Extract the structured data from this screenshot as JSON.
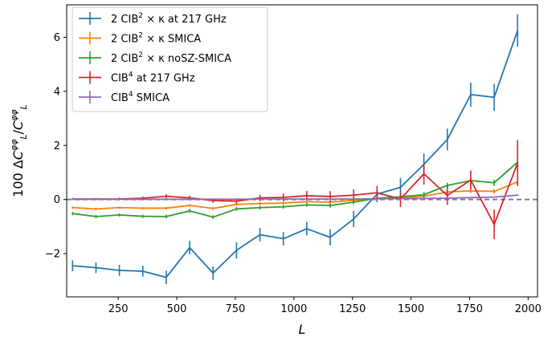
{
  "chart_data": {
    "type": "line",
    "xlabel": "L",
    "ylabel_prefix": "100",
    "ylabel_formula": "ΔC_L^φφ / C_L^φφ",
    "xlim": [
      30,
      2040
    ],
    "ylim": [
      -3.6,
      7.2
    ],
    "xticks": [
      250,
      500,
      750,
      1000,
      1250,
      1500,
      1750,
      2000
    ],
    "xtick_labels": [
      "250",
      "500",
      "750",
      "1000",
      "1250",
      "1500",
      "1750",
      "2000"
    ],
    "yticks": [
      -2,
      0,
      2,
      4,
      6
    ],
    "ytick_labels": [
      "−2",
      "0",
      "2",
      "4",
      "6"
    ],
    "reference_line": {
      "y": 0,
      "color": "#808080",
      "style": "dashed"
    },
    "legend_position": "upper left",
    "x": [
      55,
      155,
      255,
      355,
      455,
      555,
      655,
      755,
      855,
      955,
      1055,
      1155,
      1255,
      1355,
      1455,
      1555,
      1655,
      1755,
      1855,
      1955
    ],
    "series": [
      {
        "name_main": "2 CIB",
        "name_sup": "2",
        "name_tail": " × κ at 217 GHz",
        "color": "#1f77b4",
        "values": [
          -2.45,
          -2.52,
          -2.62,
          -2.65,
          -2.88,
          -1.78,
          -2.72,
          -1.88,
          -1.3,
          -1.45,
          -1.08,
          -1.4,
          -0.72,
          0.2,
          0.45,
          1.3,
          2.22,
          3.88,
          3.78,
          6.25
        ],
        "errors": [
          0.2,
          0.2,
          0.2,
          0.2,
          0.25,
          0.25,
          0.25,
          0.3,
          0.25,
          0.25,
          0.25,
          0.3,
          0.3,
          0.3,
          0.35,
          0.4,
          0.4,
          0.45,
          0.5,
          0.6
        ]
      },
      {
        "name_main": "2 CIB",
        "name_sup": "2",
        "name_tail": " × κ SMICA",
        "color": "#ff7f0e",
        "values": [
          -0.3,
          -0.35,
          -0.3,
          -0.32,
          -0.32,
          -0.22,
          -0.33,
          -0.18,
          -0.15,
          -0.13,
          -0.08,
          -0.1,
          -0.03,
          0.02,
          0.05,
          0.12,
          0.28,
          0.32,
          0.3,
          0.65
        ],
        "errors": [
          0.04,
          0.04,
          0.04,
          0.04,
          0.05,
          0.05,
          0.05,
          0.05,
          0.05,
          0.05,
          0.05,
          0.05,
          0.06,
          0.06,
          0.06,
          0.07,
          0.07,
          0.08,
          0.08,
          0.1
        ]
      },
      {
        "name_main": "2 CIB",
        "name_sup": "2",
        "name_tail": " × κ noSZ-SMICA",
        "color": "#2ca02c",
        "values": [
          -0.52,
          -0.63,
          -0.57,
          -0.62,
          -0.63,
          -0.42,
          -0.65,
          -0.35,
          -0.3,
          -0.27,
          -0.2,
          -0.22,
          -0.1,
          0.05,
          0.1,
          0.18,
          0.52,
          0.7,
          0.62,
          1.38
        ],
        "errors": [
          0.06,
          0.06,
          0.06,
          0.06,
          0.07,
          0.07,
          0.07,
          0.07,
          0.07,
          0.07,
          0.07,
          0.08,
          0.08,
          0.08,
          0.09,
          0.1,
          0.1,
          0.12,
          0.12,
          0.15
        ]
      },
      {
        "name_main": "CIB",
        "name_sup": "4",
        "name_tail": " at 217 GHz",
        "color": "#d62728",
        "values": [
          0.02,
          0.02,
          0.02,
          0.05,
          0.12,
          0.06,
          -0.04,
          -0.06,
          0.06,
          0.08,
          0.14,
          0.11,
          0.16,
          0.25,
          0.02,
          0.95,
          0.15,
          0.72,
          -0.92,
          1.35
        ],
        "errors": [
          0.04,
          0.04,
          0.05,
          0.06,
          0.08,
          0.08,
          0.08,
          0.1,
          0.12,
          0.15,
          0.18,
          0.2,
          0.22,
          0.25,
          0.3,
          0.4,
          0.35,
          0.35,
          0.55,
          0.85
        ]
      },
      {
        "name_main": "CIB",
        "name_sup": "4",
        "name_tail": " SMICA",
        "color": "#9467bd",
        "values": [
          0.01,
          0.01,
          0.01,
          0.01,
          0.01,
          0.01,
          0.01,
          0.01,
          0.02,
          0.02,
          0.02,
          0.02,
          0.02,
          0.03,
          0.03,
          0.04,
          0.05,
          0.07,
          0.09,
          0.16
        ],
        "errors": [
          0.01,
          0.01,
          0.01,
          0.01,
          0.01,
          0.01,
          0.01,
          0.01,
          0.01,
          0.01,
          0.01,
          0.01,
          0.01,
          0.01,
          0.02,
          0.02,
          0.02,
          0.02,
          0.02,
          0.03
        ]
      }
    ]
  }
}
